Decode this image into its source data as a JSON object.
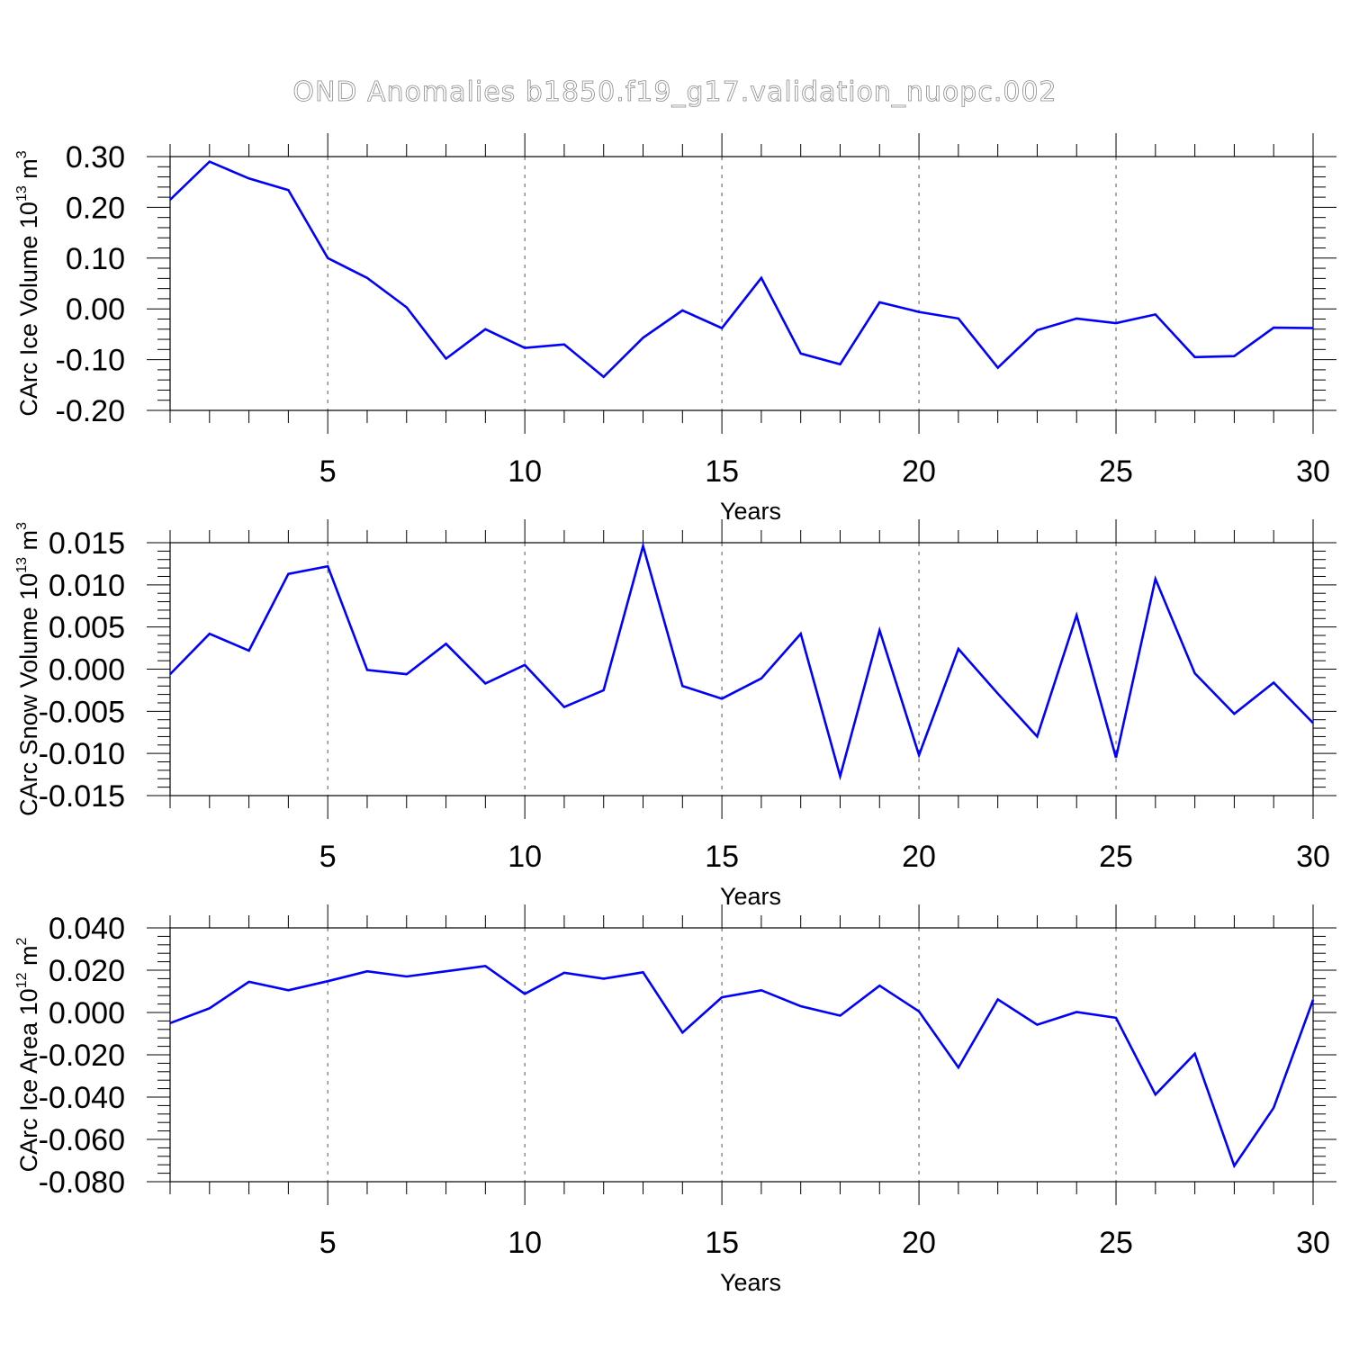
{
  "title": "OND Anomalies b1850.f19_g17.validation_nuopc.002",
  "chart_data": [
    {
      "type": "line",
      "title": "OND Anomalies b1850.f19_g17.validation_nuopc.002",
      "xlabel": "Years",
      "ylabel": "CArc Ice Volume 10",
      "ylabel_exponent": "13",
      "ylabel_unit": " m",
      "ylabel_unit_exponent": "3",
      "xlim": [
        1,
        30
      ],
      "ylim": [
        -0.2,
        0.3
      ],
      "x_ticks": [
        5,
        10,
        15,
        20,
        25,
        30
      ],
      "y_ticks": [
        -0.2,
        -0.1,
        0.0,
        0.1,
        0.2,
        0.3
      ],
      "y_tick_labels": [
        "-0.20",
        "-0.10",
        "0.00",
        "0.10",
        "0.20",
        "0.30"
      ],
      "grid": "vertical dashed at major x ticks",
      "color": "#0000ff",
      "x": [
        1,
        2,
        3,
        4,
        5,
        6,
        7,
        8,
        9,
        10,
        11,
        12,
        13,
        14,
        15,
        16,
        17,
        18,
        19,
        20,
        21,
        22,
        23,
        24,
        25,
        26,
        27,
        28,
        29,
        30
      ],
      "values": [
        0.215,
        0.29,
        0.257,
        0.234,
        0.1,
        0.061,
        0.003,
        -0.098,
        -0.04,
        -0.077,
        -0.07,
        -0.134,
        -0.057,
        -0.003,
        -0.038,
        0.061,
        -0.088,
        -0.109,
        0.013,
        -0.006,
        -0.019,
        -0.116,
        -0.042,
        -0.019,
        -0.028,
        -0.011,
        -0.095,
        -0.093,
        -0.037,
        -0.038
      ]
    },
    {
      "type": "line",
      "xlabel": "Years",
      "ylabel": "CArc Snow Volume 10",
      "ylabel_exponent": "13",
      "ylabel_unit": " m",
      "ylabel_unit_exponent": "3",
      "xlim": [
        1,
        30
      ],
      "ylim": [
        -0.015,
        0.015
      ],
      "x_ticks": [
        5,
        10,
        15,
        20,
        25,
        30
      ],
      "y_ticks": [
        -0.015,
        -0.01,
        -0.005,
        0.0,
        0.005,
        0.01,
        0.015
      ],
      "y_tick_labels": [
        "-0.015",
        "-0.010",
        "-0.005",
        "0.000",
        "0.005",
        "0.010",
        "0.015"
      ],
      "grid": "vertical dashed at major x ticks",
      "color": "#0000ff",
      "x": [
        1,
        2,
        3,
        4,
        5,
        6,
        7,
        8,
        9,
        10,
        11,
        12,
        13,
        14,
        15,
        16,
        17,
        18,
        19,
        20,
        21,
        22,
        23,
        24,
        25,
        26,
        27,
        28,
        29,
        30
      ],
      "values": [
        -0.0006,
        0.0042,
        0.0022,
        0.0113,
        0.0122,
        -0.0001,
        -0.0006,
        0.003,
        -0.0017,
        0.0005,
        -0.0045,
        -0.0025,
        0.0146,
        -0.002,
        -0.0035,
        -0.0011,
        0.0042,
        -0.0127,
        0.0046,
        -0.0102,
        0.0024,
        -0.0029,
        -0.008,
        0.0064,
        -0.0105,
        0.0107,
        -0.0005,
        -0.0053,
        -0.0016,
        -0.0064
      ]
    },
    {
      "type": "line",
      "xlabel": "Years",
      "ylabel": "CArc Ice Area 10",
      "ylabel_exponent": "12",
      "ylabel_unit": " m",
      "ylabel_unit_exponent": "2",
      "xlim": [
        1,
        30
      ],
      "ylim": [
        -0.08,
        0.04
      ],
      "x_ticks": [
        5,
        10,
        15,
        20,
        25,
        30
      ],
      "y_ticks": [
        -0.08,
        -0.06,
        -0.04,
        -0.02,
        0.0,
        0.02,
        0.04
      ],
      "y_tick_labels": [
        "-0.080",
        "-0.060",
        "-0.040",
        "-0.020",
        "0.000",
        "0.020",
        "0.040"
      ],
      "grid": "vertical dashed at major x ticks",
      "color": "#0000ff",
      "x": [
        1,
        2,
        3,
        4,
        5,
        6,
        7,
        8,
        9,
        10,
        11,
        12,
        13,
        14,
        15,
        16,
        17,
        18,
        19,
        20,
        21,
        22,
        23,
        24,
        25,
        26,
        27,
        28,
        29,
        30
      ],
      "values": [
        -0.005,
        0.002,
        0.0145,
        0.0105,
        0.0148,
        0.0195,
        0.017,
        0.0195,
        0.022,
        0.0088,
        0.0188,
        0.016,
        0.019,
        -0.0095,
        0.0072,
        0.0105,
        0.003,
        -0.0015,
        0.0127,
        0.0005,
        -0.026,
        0.0062,
        -0.0058,
        0.0002,
        -0.0025,
        -0.0388,
        -0.0195,
        -0.0725,
        -0.045,
        0.006
      ]
    }
  ]
}
